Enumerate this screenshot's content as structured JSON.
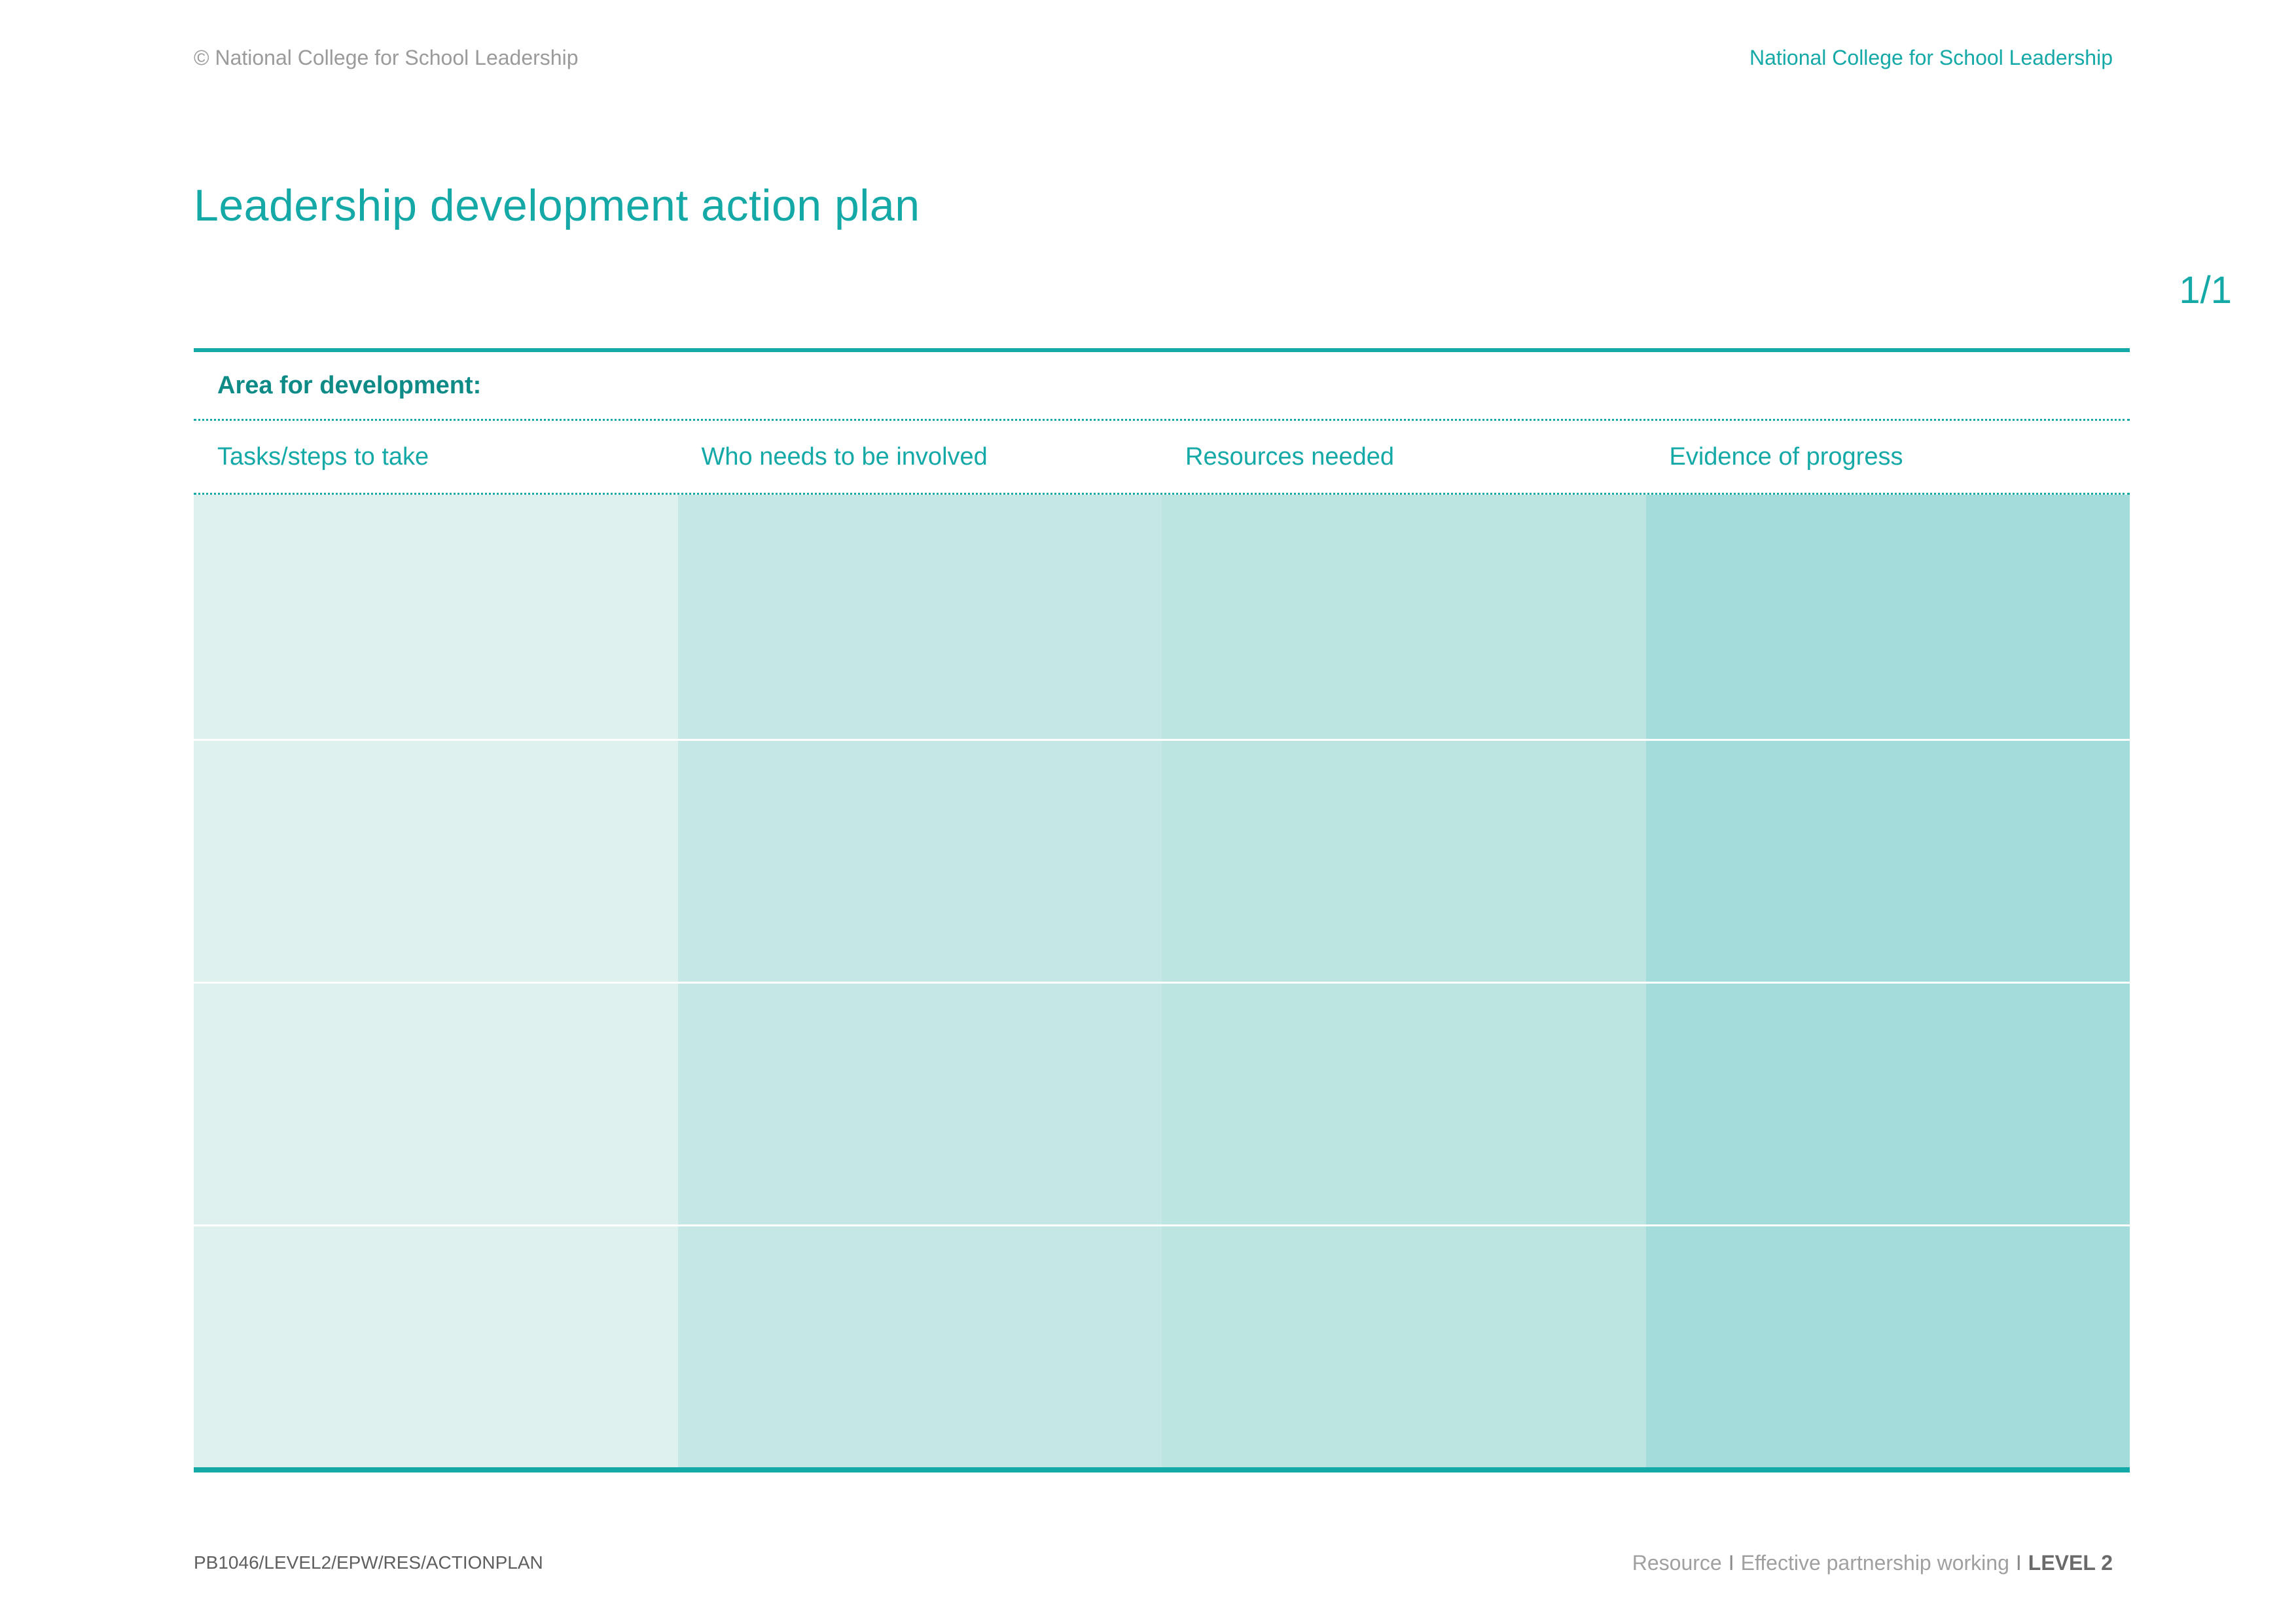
{
  "header": {
    "copyright": "© National College for School Leadership",
    "organisation": "National College for School Leadership"
  },
  "title": "Leadership development action plan",
  "page_number": "1/1",
  "plan": {
    "area_label": "Area for development:",
    "columns": [
      "Tasks/steps to take",
      "Who needs to be involved",
      "Resources needed",
      "Evidence of progress"
    ],
    "row_count": 4
  },
  "footer": {
    "code": "PB1046/LEVEL2/EPW/RES/ACTIONPLAN",
    "resource": "Resource",
    "separator": "I",
    "topic": "Effective partnership working",
    "level": "LEVEL 2"
  },
  "colors": {
    "accent": "#14a9a7",
    "column_1": "#dff1ef",
    "column_2": "#c5e7e6",
    "column_3": "#bce4e1",
    "column_4": "#a4dcdb"
  }
}
